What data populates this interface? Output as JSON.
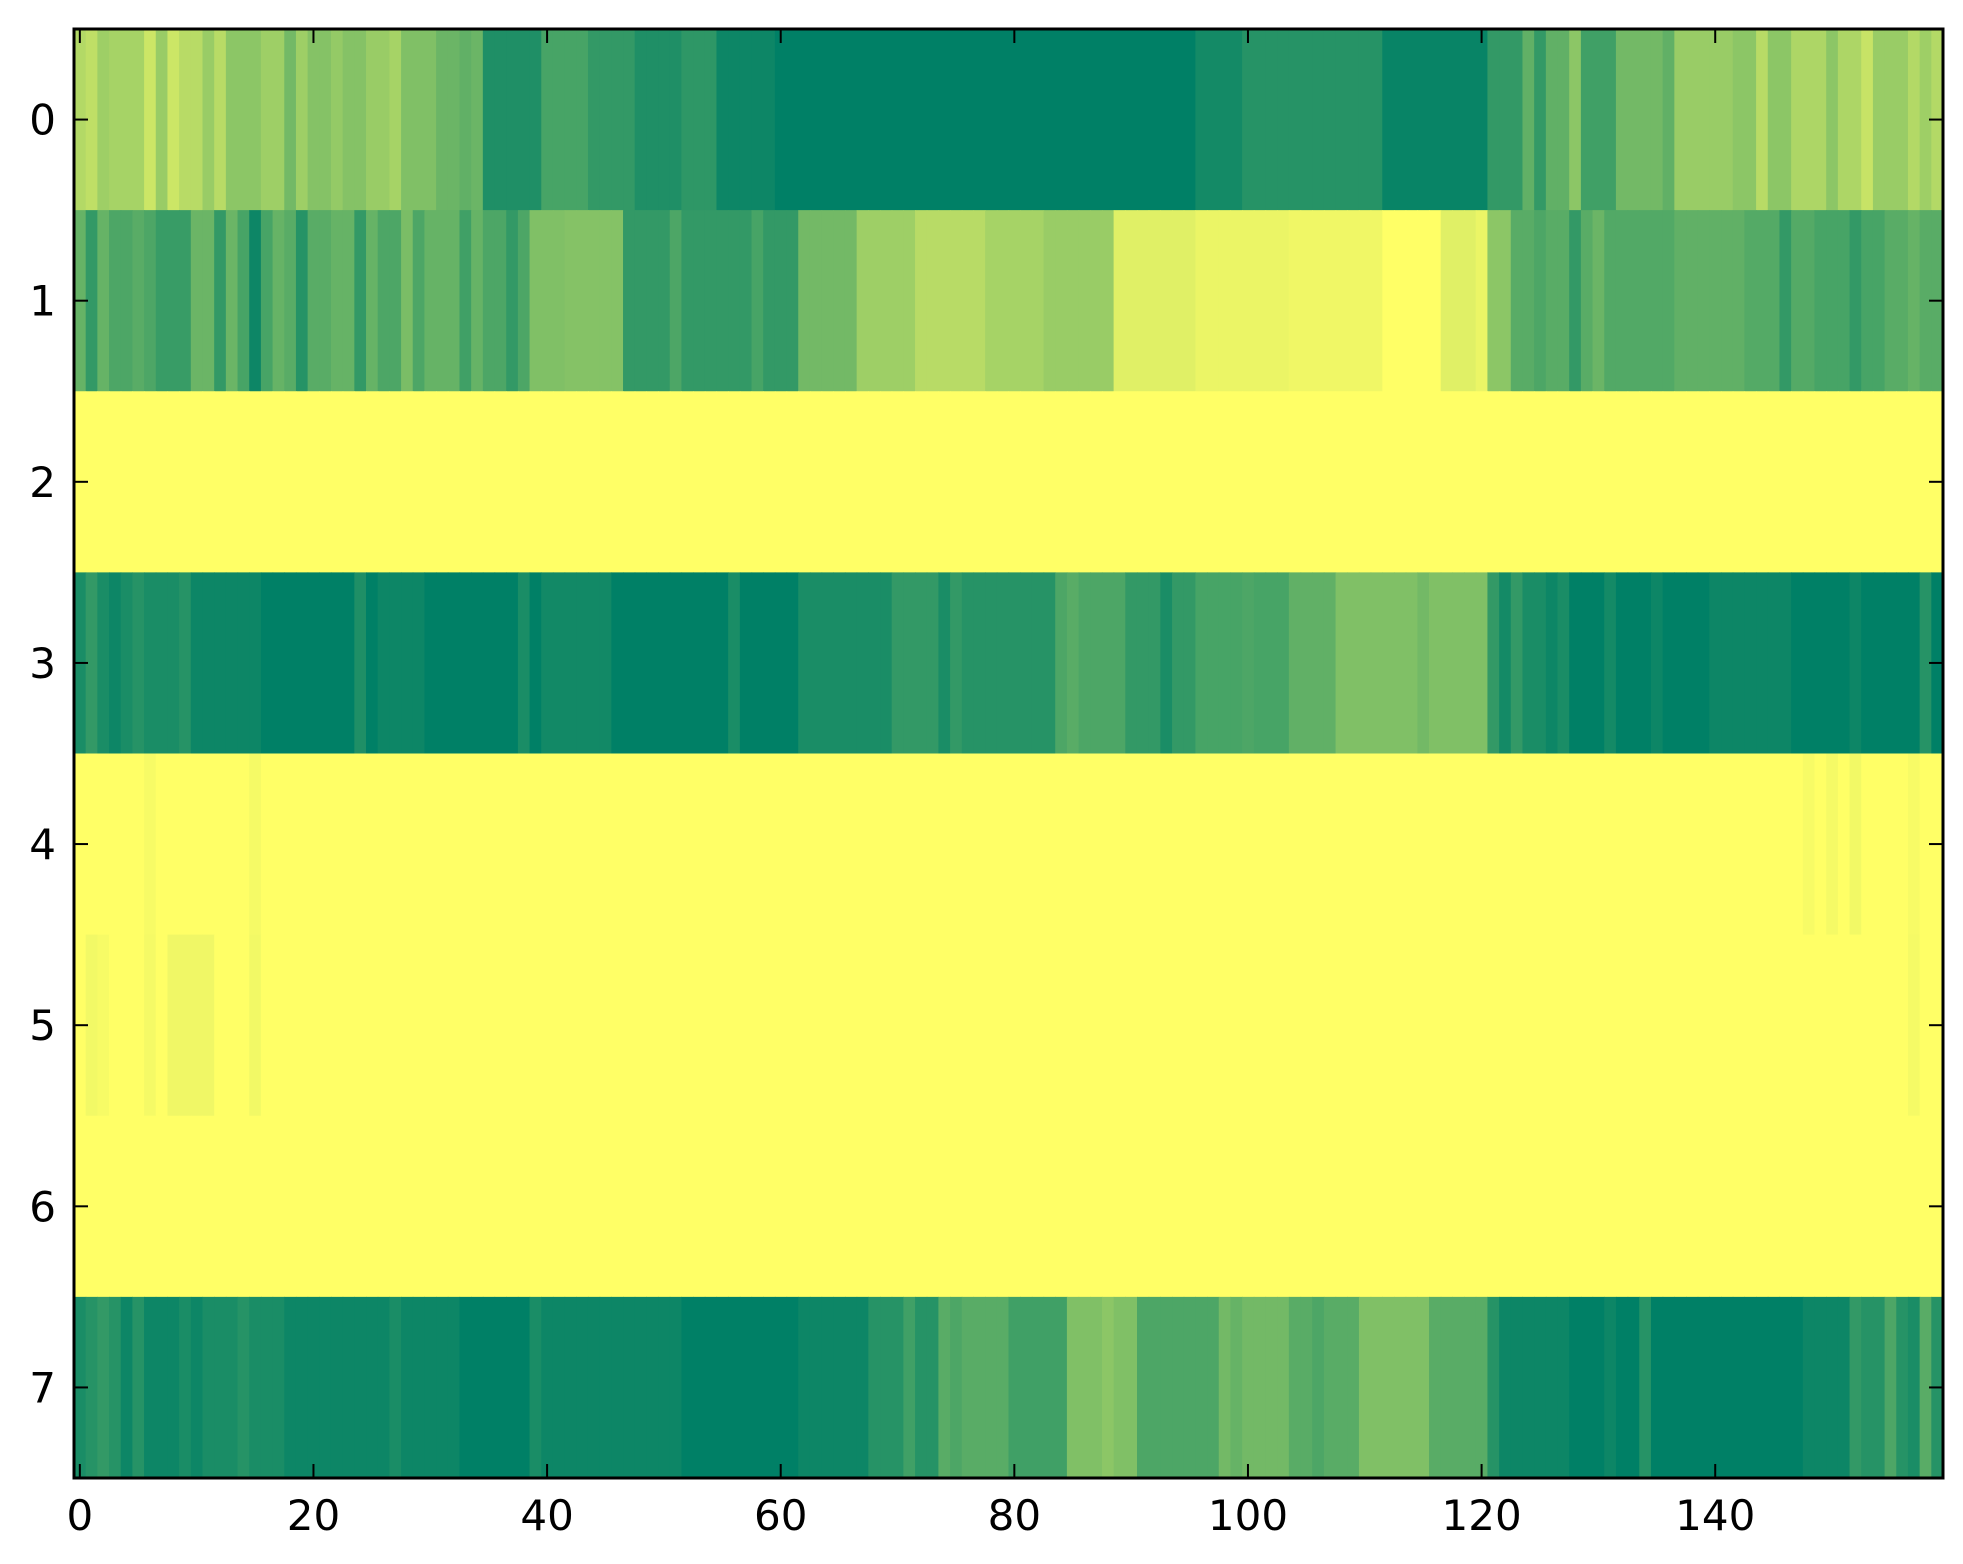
{
  "chart_data": {
    "type": "heatmap",
    "title": "",
    "xlabel": "",
    "ylabel": "",
    "colormap": "summer",
    "colors": {
      "low": "#008066",
      "high": "#ffff66"
    },
    "n_cols": 160,
    "n_rows": 8,
    "xlim": [
      -0.5,
      159.5
    ],
    "ylim": [
      7.5,
      -0.5
    ],
    "x_ticks": [
      0,
      20,
      40,
      60,
      80,
      100,
      120,
      140
    ],
    "x_tick_labels": [
      "0",
      "20",
      "40",
      "60",
      "80",
      "100",
      "120",
      "140"
    ],
    "y_ticks": [
      0,
      1,
      2,
      3,
      4,
      5,
      6,
      7
    ],
    "y_tick_labels": [
      "0",
      "1",
      "2",
      "3",
      "4",
      "5",
      "6",
      "7"
    ],
    "value_range": [
      0,
      1
    ],
    "rows": [
      [
        [
          0,
          3,
          0.75
        ],
        [
          3,
          6,
          0.65
        ],
        [
          6,
          9,
          0.8
        ],
        [
          9,
          13,
          0.72
        ],
        [
          13,
          16,
          0.55
        ],
        [
          16,
          20,
          0.62
        ],
        [
          20,
          25,
          0.52
        ],
        [
          25,
          28,
          0.6
        ],
        [
          28,
          31,
          0.5
        ],
        [
          31,
          35,
          0.42
        ],
        [
          35,
          40,
          0.12
        ],
        [
          40,
          44,
          0.28
        ],
        [
          44,
          48,
          0.2
        ],
        [
          48,
          52,
          0.12
        ],
        [
          52,
          55,
          0.18
        ],
        [
          55,
          60,
          0.05
        ],
        [
          60,
          96,
          0.0
        ],
        [
          96,
          100,
          0.08
        ],
        [
          100,
          112,
          0.15
        ],
        [
          112,
          121,
          0.03
        ],
        [
          121,
          124,
          0.2
        ],
        [
          124,
          128,
          0.38
        ],
        [
          128,
          133,
          0.25
        ],
        [
          133,
          137,
          0.45
        ],
        [
          137,
          142,
          0.6
        ],
        [
          142,
          147,
          0.55
        ],
        [
          147,
          153,
          0.68
        ],
        [
          153,
          157,
          0.6
        ],
        [
          157,
          160,
          0.7
        ]
      ],
      [
        [
          0,
          3,
          0.4
        ],
        [
          3,
          7,
          0.3
        ],
        [
          7,
          10,
          0.22
        ],
        [
          10,
          14,
          0.42
        ],
        [
          14,
          18,
          0.28
        ],
        [
          18,
          22,
          0.35
        ],
        [
          22,
          26,
          0.4
        ],
        [
          26,
          30,
          0.3
        ],
        [
          30,
          35,
          0.4
        ],
        [
          35,
          39,
          0.3
        ],
        [
          39,
          42,
          0.5
        ],
        [
          42,
          47,
          0.52
        ],
        [
          47,
          62,
          0.2
        ],
        [
          62,
          67,
          0.45
        ],
        [
          67,
          72,
          0.62
        ],
        [
          72,
          78,
          0.72
        ],
        [
          78,
          83,
          0.65
        ],
        [
          83,
          89,
          0.6
        ],
        [
          89,
          96,
          0.88
        ],
        [
          96,
          104,
          0.92
        ],
        [
          104,
          112,
          0.94
        ],
        [
          112,
          117,
          1.0
        ],
        [
          117,
          121,
          0.88
        ],
        [
          121,
          123,
          0.55
        ],
        [
          123,
          131,
          0.35
        ],
        [
          131,
          137,
          0.32
        ],
        [
          137,
          143,
          0.38
        ],
        [
          143,
          149,
          0.33
        ],
        [
          149,
          155,
          0.28
        ],
        [
          155,
          160,
          0.35
        ]
      ],
      [
        [
          0,
          160,
          1.0
        ]
      ],
      [
        [
          0,
          10,
          0.1
        ],
        [
          10,
          16,
          0.05
        ],
        [
          16,
          26,
          0.0
        ],
        [
          26,
          30,
          0.05
        ],
        [
          30,
          40,
          0.0
        ],
        [
          40,
          46,
          0.07
        ],
        [
          46,
          62,
          0.0
        ],
        [
          62,
          70,
          0.1
        ],
        [
          70,
          76,
          0.2
        ],
        [
          76,
          84,
          0.15
        ],
        [
          84,
          90,
          0.3
        ],
        [
          90,
          96,
          0.2
        ],
        [
          96,
          104,
          0.28
        ],
        [
          104,
          108,
          0.38
        ],
        [
          108,
          114,
          0.5
        ],
        [
          114,
          121,
          0.5
        ],
        [
          121,
          124,
          0.2
        ],
        [
          124,
          128,
          0.1
        ],
        [
          128,
          140,
          0.0
        ],
        [
          140,
          147,
          0.05
        ],
        [
          147,
          160,
          0.0
        ]
      ],
      [
        [
          0,
          160,
          1.0
        ]
      ],
      [
        [
          0,
          160,
          1.0
        ]
      ],
      [
        [
          0,
          160,
          1.0
        ]
      ],
      [
        [
          0,
          6,
          0.15
        ],
        [
          6,
          11,
          0.05
        ],
        [
          11,
          18,
          0.1
        ],
        [
          18,
          33,
          0.05
        ],
        [
          33,
          40,
          0.0
        ],
        [
          40,
          52,
          0.05
        ],
        [
          52,
          62,
          0.0
        ],
        [
          62,
          68,
          0.05
        ],
        [
          68,
          74,
          0.15
        ],
        [
          74,
          80,
          0.35
        ],
        [
          80,
          85,
          0.25
        ],
        [
          85,
          91,
          0.5
        ],
        [
          91,
          98,
          0.3
        ],
        [
          98,
          104,
          0.45
        ],
        [
          104,
          110,
          0.35
        ],
        [
          110,
          116,
          0.5
        ],
        [
          116,
          122,
          0.35
        ],
        [
          122,
          128,
          0.05
        ],
        [
          128,
          137,
          0.0
        ],
        [
          137,
          148,
          0.0
        ],
        [
          148,
          153,
          0.05
        ],
        [
          153,
          160,
          0.15
        ]
      ]
    ],
    "patches": [
      {
        "row": 0,
        "cols": [
          [
            0,
            1,
            0.7
          ],
          [
            2,
            3,
            0.62
          ],
          [
            7,
            8,
            0.6
          ],
          [
            11,
            12,
            0.6
          ],
          [
            18,
            19,
            0.45
          ],
          [
            22,
            23,
            0.58
          ],
          [
            27,
            28,
            0.65
          ],
          [
            33,
            34,
            0.38
          ],
          [
            125,
            126,
            0.2
          ],
          [
            128,
            129,
            0.55
          ],
          [
            132,
            133,
            0.45
          ],
          [
            136,
            137,
            0.38
          ],
          [
            144,
            145,
            0.72
          ],
          [
            150,
            151,
            0.55
          ],
          [
            153,
            154,
            0.78
          ],
          [
            158,
            159,
            0.62
          ]
        ]
      },
      {
        "row": 1,
        "cols": [
          [
            1,
            2,
            0.2
          ],
          [
            5,
            6,
            0.35
          ],
          [
            12,
            13,
            0.2
          ],
          [
            15,
            16,
            0.05
          ],
          [
            17,
            18,
            0.4
          ],
          [
            19,
            20,
            0.15
          ],
          [
            24,
            25,
            0.2
          ],
          [
            28,
            29,
            0.48
          ],
          [
            33,
            34,
            0.25
          ],
          [
            37,
            38,
            0.2
          ],
          [
            51,
            52,
            0.3
          ],
          [
            58,
            59,
            0.28
          ],
          [
            120,
            121,
            0.92
          ],
          [
            125,
            126,
            0.3
          ],
          [
            128,
            129,
            0.2
          ],
          [
            130,
            131,
            0.42
          ],
          [
            146,
            147,
            0.2
          ],
          [
            152,
            153,
            0.2
          ],
          [
            157,
            158,
            0.4
          ]
        ]
      },
      {
        "row": 3,
        "cols": [
          [
            1,
            2,
            0.2
          ],
          [
            3,
            4,
            0.05
          ],
          [
            5,
            6,
            0.15
          ],
          [
            9,
            10,
            0.15
          ],
          [
            24,
            25,
            0.12
          ],
          [
            29,
            30,
            0.05
          ],
          [
            38,
            39,
            0.1
          ],
          [
            56,
            57,
            0.1
          ],
          [
            74,
            75,
            0.1
          ],
          [
            85,
            86,
            0.35
          ],
          [
            93,
            94,
            0.1
          ],
          [
            100,
            101,
            0.3
          ],
          [
            115,
            116,
            0.45
          ],
          [
            122,
            123,
            0.08
          ],
          [
            126,
            127,
            0.05
          ],
          [
            131,
            132,
            0.08
          ],
          [
            135,
            136,
            0.05
          ],
          [
            152,
            153,
            0.05
          ],
          [
            158,
            159,
            0.15
          ]
        ]
      },
      {
        "row": 4,
        "cols": [
          [
            6,
            7,
            0.97
          ],
          [
            15,
            16,
            0.96
          ],
          [
            148,
            149,
            0.97
          ],
          [
            150,
            151,
            0.96
          ],
          [
            152,
            153,
            0.95
          ],
          [
            157,
            158,
            0.97
          ]
        ]
      },
      {
        "row": 5,
        "cols": [
          [
            1,
            2,
            0.95
          ],
          [
            2,
            3,
            0.97
          ],
          [
            6,
            7,
            0.96
          ],
          [
            8,
            12,
            0.94
          ],
          [
            15,
            16,
            0.95
          ],
          [
            157,
            158,
            0.96
          ]
        ]
      },
      {
        "row": 7,
        "cols": [
          [
            0,
            1,
            0.1
          ],
          [
            2,
            3,
            0.2
          ],
          [
            4,
            5,
            0.05
          ],
          [
            9,
            10,
            0.1
          ],
          [
            14,
            15,
            0.15
          ],
          [
            27,
            28,
            0.1
          ],
          [
            39,
            40,
            0.1
          ],
          [
            71,
            72,
            0.25
          ],
          [
            75,
            76,
            0.3
          ],
          [
            88,
            89,
            0.55
          ],
          [
            99,
            100,
            0.4
          ],
          [
            106,
            107,
            0.3
          ],
          [
            121,
            122,
            0.15
          ],
          [
            123,
            124,
            0.05
          ],
          [
            131,
            132,
            0.05
          ],
          [
            134,
            135,
            0.15
          ],
          [
            152,
            153,
            0.2
          ],
          [
            155,
            156,
            0.3
          ],
          [
            157,
            158,
            0.1
          ],
          [
            158,
            159,
            0.35
          ]
        ]
      }
    ]
  }
}
